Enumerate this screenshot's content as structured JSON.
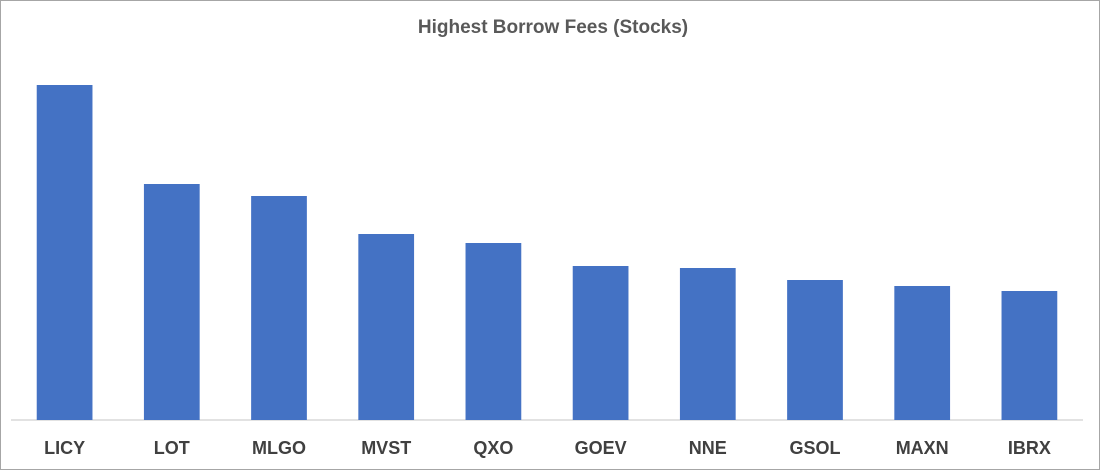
{
  "chart_data": {
    "type": "bar",
    "title": "Highest Borrow Fees (Stocks)",
    "categories": [
      "LICY",
      "LOT",
      "MLGO",
      "MVST",
      "QXO",
      "GOEV",
      "NNE",
      "GSOL",
      "MAXN",
      "IBRX"
    ],
    "values": [
      335,
      236,
      224,
      186,
      177,
      154,
      152,
      140,
      134,
      129
    ],
    "color": "#4472c4",
    "ylim": [
      0,
      350
    ]
  }
}
